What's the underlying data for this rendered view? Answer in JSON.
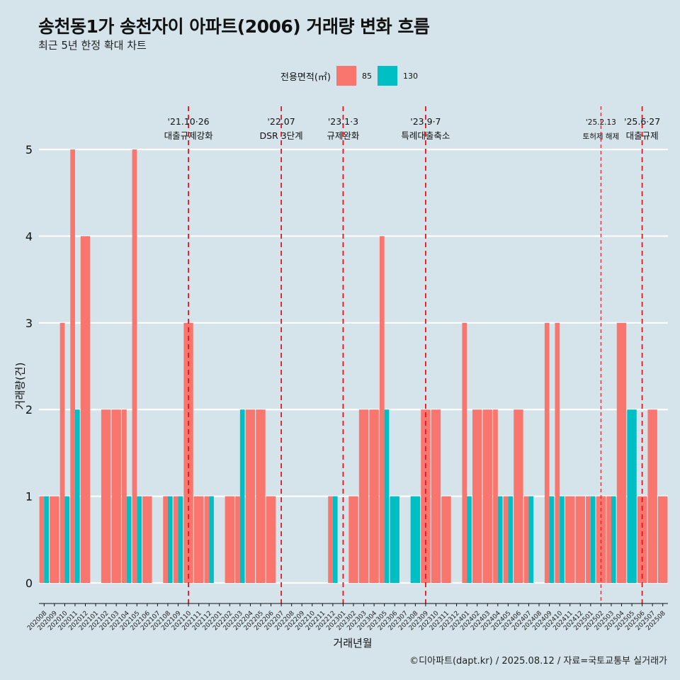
{
  "title": "송천동1가 송천자이 아파트(2006) 거래량 변화 흐름",
  "subtitle": "최근 5년 한정 확대 차트",
  "caption": "©디아파트(dapt.kr) / 2025.08.12 / 자료=국토교통부 실거래가",
  "legend": {
    "title": "전용면적(㎡)",
    "items": [
      {
        "label": "85",
        "color": "#f8766d"
      },
      {
        "label": "130",
        "color": "#00bfc4"
      }
    ]
  },
  "chart_data": {
    "type": "bar",
    "xlabel": "거래년월",
    "ylabel": "거래량(건)",
    "ylim": [
      0,
      5
    ],
    "y_ticks": [
      0,
      1,
      2,
      3,
      4,
      5
    ],
    "grid": true,
    "legend_position": "top",
    "categories": [
      "202008",
      "202009",
      "202010",
      "202011",
      "202012",
      "202101",
      "202102",
      "202103",
      "202104",
      "202105",
      "202106",
      "202107",
      "202108",
      "202109",
      "202110",
      "202111",
      "202112",
      "202201",
      "202202",
      "202203",
      "202204",
      "202205",
      "202206",
      "202207",
      "202208",
      "202209",
      "202210",
      "202211",
      "202212",
      "202301",
      "202302",
      "202303",
      "202304",
      "202305",
      "202306",
      "202307",
      "202308",
      "202309",
      "202310",
      "202311",
      "202312",
      "202401",
      "202402",
      "202403",
      "202404",
      "202405",
      "202406",
      "202407",
      "202408",
      "202409",
      "202410",
      "202411",
      "202412",
      "202501",
      "202502",
      "202503",
      "202504",
      "202505",
      "202506",
      "202507",
      "202508"
    ],
    "series": [
      {
        "name": "85",
        "color": "#f8766d",
        "values": [
          1,
          1,
          3,
          5,
          4,
          0,
          2,
          2,
          2,
          5,
          1,
          0,
          1,
          1,
          3,
          1,
          1,
          0,
          1,
          1,
          2,
          2,
          1,
          0,
          0,
          0,
          0,
          0,
          1,
          0,
          1,
          2,
          2,
          4,
          0,
          0,
          0,
          2,
          2,
          1,
          0,
          3,
          2,
          2,
          2,
          1,
          2,
          1,
          0,
          3,
          3,
          1,
          1,
          1,
          1,
          1,
          3,
          0,
          1,
          2,
          1
        ]
      },
      {
        "name": "130",
        "color": "#00bfc4",
        "values": [
          1,
          0,
          1,
          2,
          0,
          0,
          0,
          0,
          1,
          1,
          0,
          0,
          1,
          1,
          0,
          0,
          1,
          0,
          0,
          2,
          0,
          0,
          0,
          0,
          0,
          0,
          0,
          0,
          1,
          0,
          0,
          0,
          0,
          2,
          1,
          0,
          1,
          0,
          0,
          0,
          0,
          1,
          0,
          0,
          1,
          1,
          0,
          1,
          0,
          1,
          1,
          0,
          0,
          1,
          0,
          1,
          0,
          2,
          0,
          0,
          0
        ]
      }
    ],
    "annotations": [
      {
        "at": "202110",
        "date": "'21.10·26",
        "label": "대출규제강화",
        "style": "major"
      },
      {
        "at": "202207",
        "date": "'22.07",
        "label": "DSR 3단계",
        "style": "major"
      },
      {
        "at": "202301",
        "date": "'23.1·3",
        "label": "규제완화",
        "style": "major"
      },
      {
        "at": "202309",
        "date": "'23.9·7",
        "label": "특례대출축소",
        "style": "major"
      },
      {
        "at": "202502",
        "date": "'25.2.13",
        "label": "토허제 해제",
        "style": "minor"
      },
      {
        "at": "202506",
        "date": "'25.6·27",
        "label": "대출규제",
        "style": "major"
      }
    ]
  }
}
